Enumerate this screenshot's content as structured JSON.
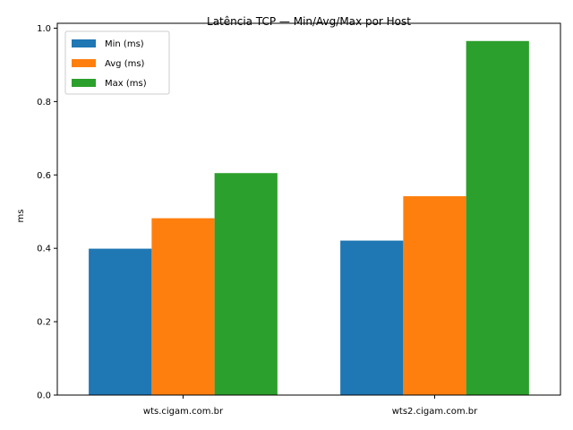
{
  "chart_data": {
    "type": "bar",
    "title": "Latência TCP — Min/Avg/Max por Host",
    "xlabel": "",
    "ylabel": "ms",
    "categories": [
      "wts.cigam.com.br",
      "wts2.cigam.com.br"
    ],
    "series": [
      {
        "name": "Min (ms)",
        "values": [
          0.399,
          0.421
        ],
        "color": "#1f77b4"
      },
      {
        "name": "Avg (ms)",
        "values": [
          0.482,
          0.542
        ],
        "color": "#ff7f0e"
      },
      {
        "name": "Max (ms)",
        "values": [
          0.605,
          0.965
        ],
        "color": "#2ca02c"
      }
    ],
    "ylim": [
      0,
      1.0133
    ],
    "yticks": [
      0.0,
      0.2,
      0.4,
      0.6,
      0.8,
      1.0
    ],
    "ytick_labels": [
      "0.0",
      "0.2",
      "0.4",
      "0.6",
      "0.8",
      "1.0"
    ],
    "grid": false,
    "legend_position": "top-left"
  }
}
